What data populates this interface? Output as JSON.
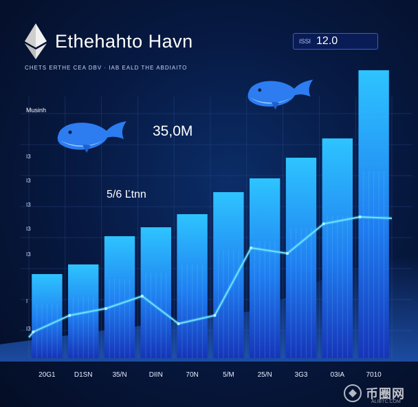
{
  "header": {
    "title": "Ethehahto Havn",
    "subtitle": "CHETS ERTHE CEA DBV · IAB EALD THE ABDIAITO"
  },
  "badge": {
    "label": "ISSI",
    "value": "12.0"
  },
  "annotations": {
    "legend_label": "Musinh",
    "big_value": "35,0M",
    "mid_value": "5/6 Ľtnn"
  },
  "watermark": {
    "text": "币圈网",
    "sub": "ALIBTC.COM"
  },
  "icons": [
    "ethereum-icon",
    "whale-icon",
    "whale-icon",
    "watermark-logo-icon"
  ],
  "colors": {
    "background": "#071a44",
    "bar_top": "#2bb8ff",
    "bar_bottom": "#1a3fc8",
    "line": "#4fd8ff",
    "text": "#ffffff"
  },
  "chart_data": {
    "type": "bar",
    "categories": [
      "20G1",
      "D1SN",
      "35/N",
      "DIIN",
      "70N",
      "5/M",
      "25/N",
      "3G3",
      "03IA",
      "7010"
    ],
    "series": [
      {
        "values": [
          122,
          136,
          177,
          190,
          209,
          241,
          261,
          291,
          319,
          418
        ]
      },
      {
        "values": [
          38,
          62,
          72,
          90,
          50,
          62,
          160,
          152,
          195,
          205
        ]
      }
    ],
    "series_types": [
      "bar",
      "line"
    ],
    "y_tick_labels": [
      "I3",
      "I3",
      "I3",
      "I3",
      "I3",
      "I",
      "I3"
    ],
    "ylim": [
      0,
      420
    ],
    "grid": true
  }
}
